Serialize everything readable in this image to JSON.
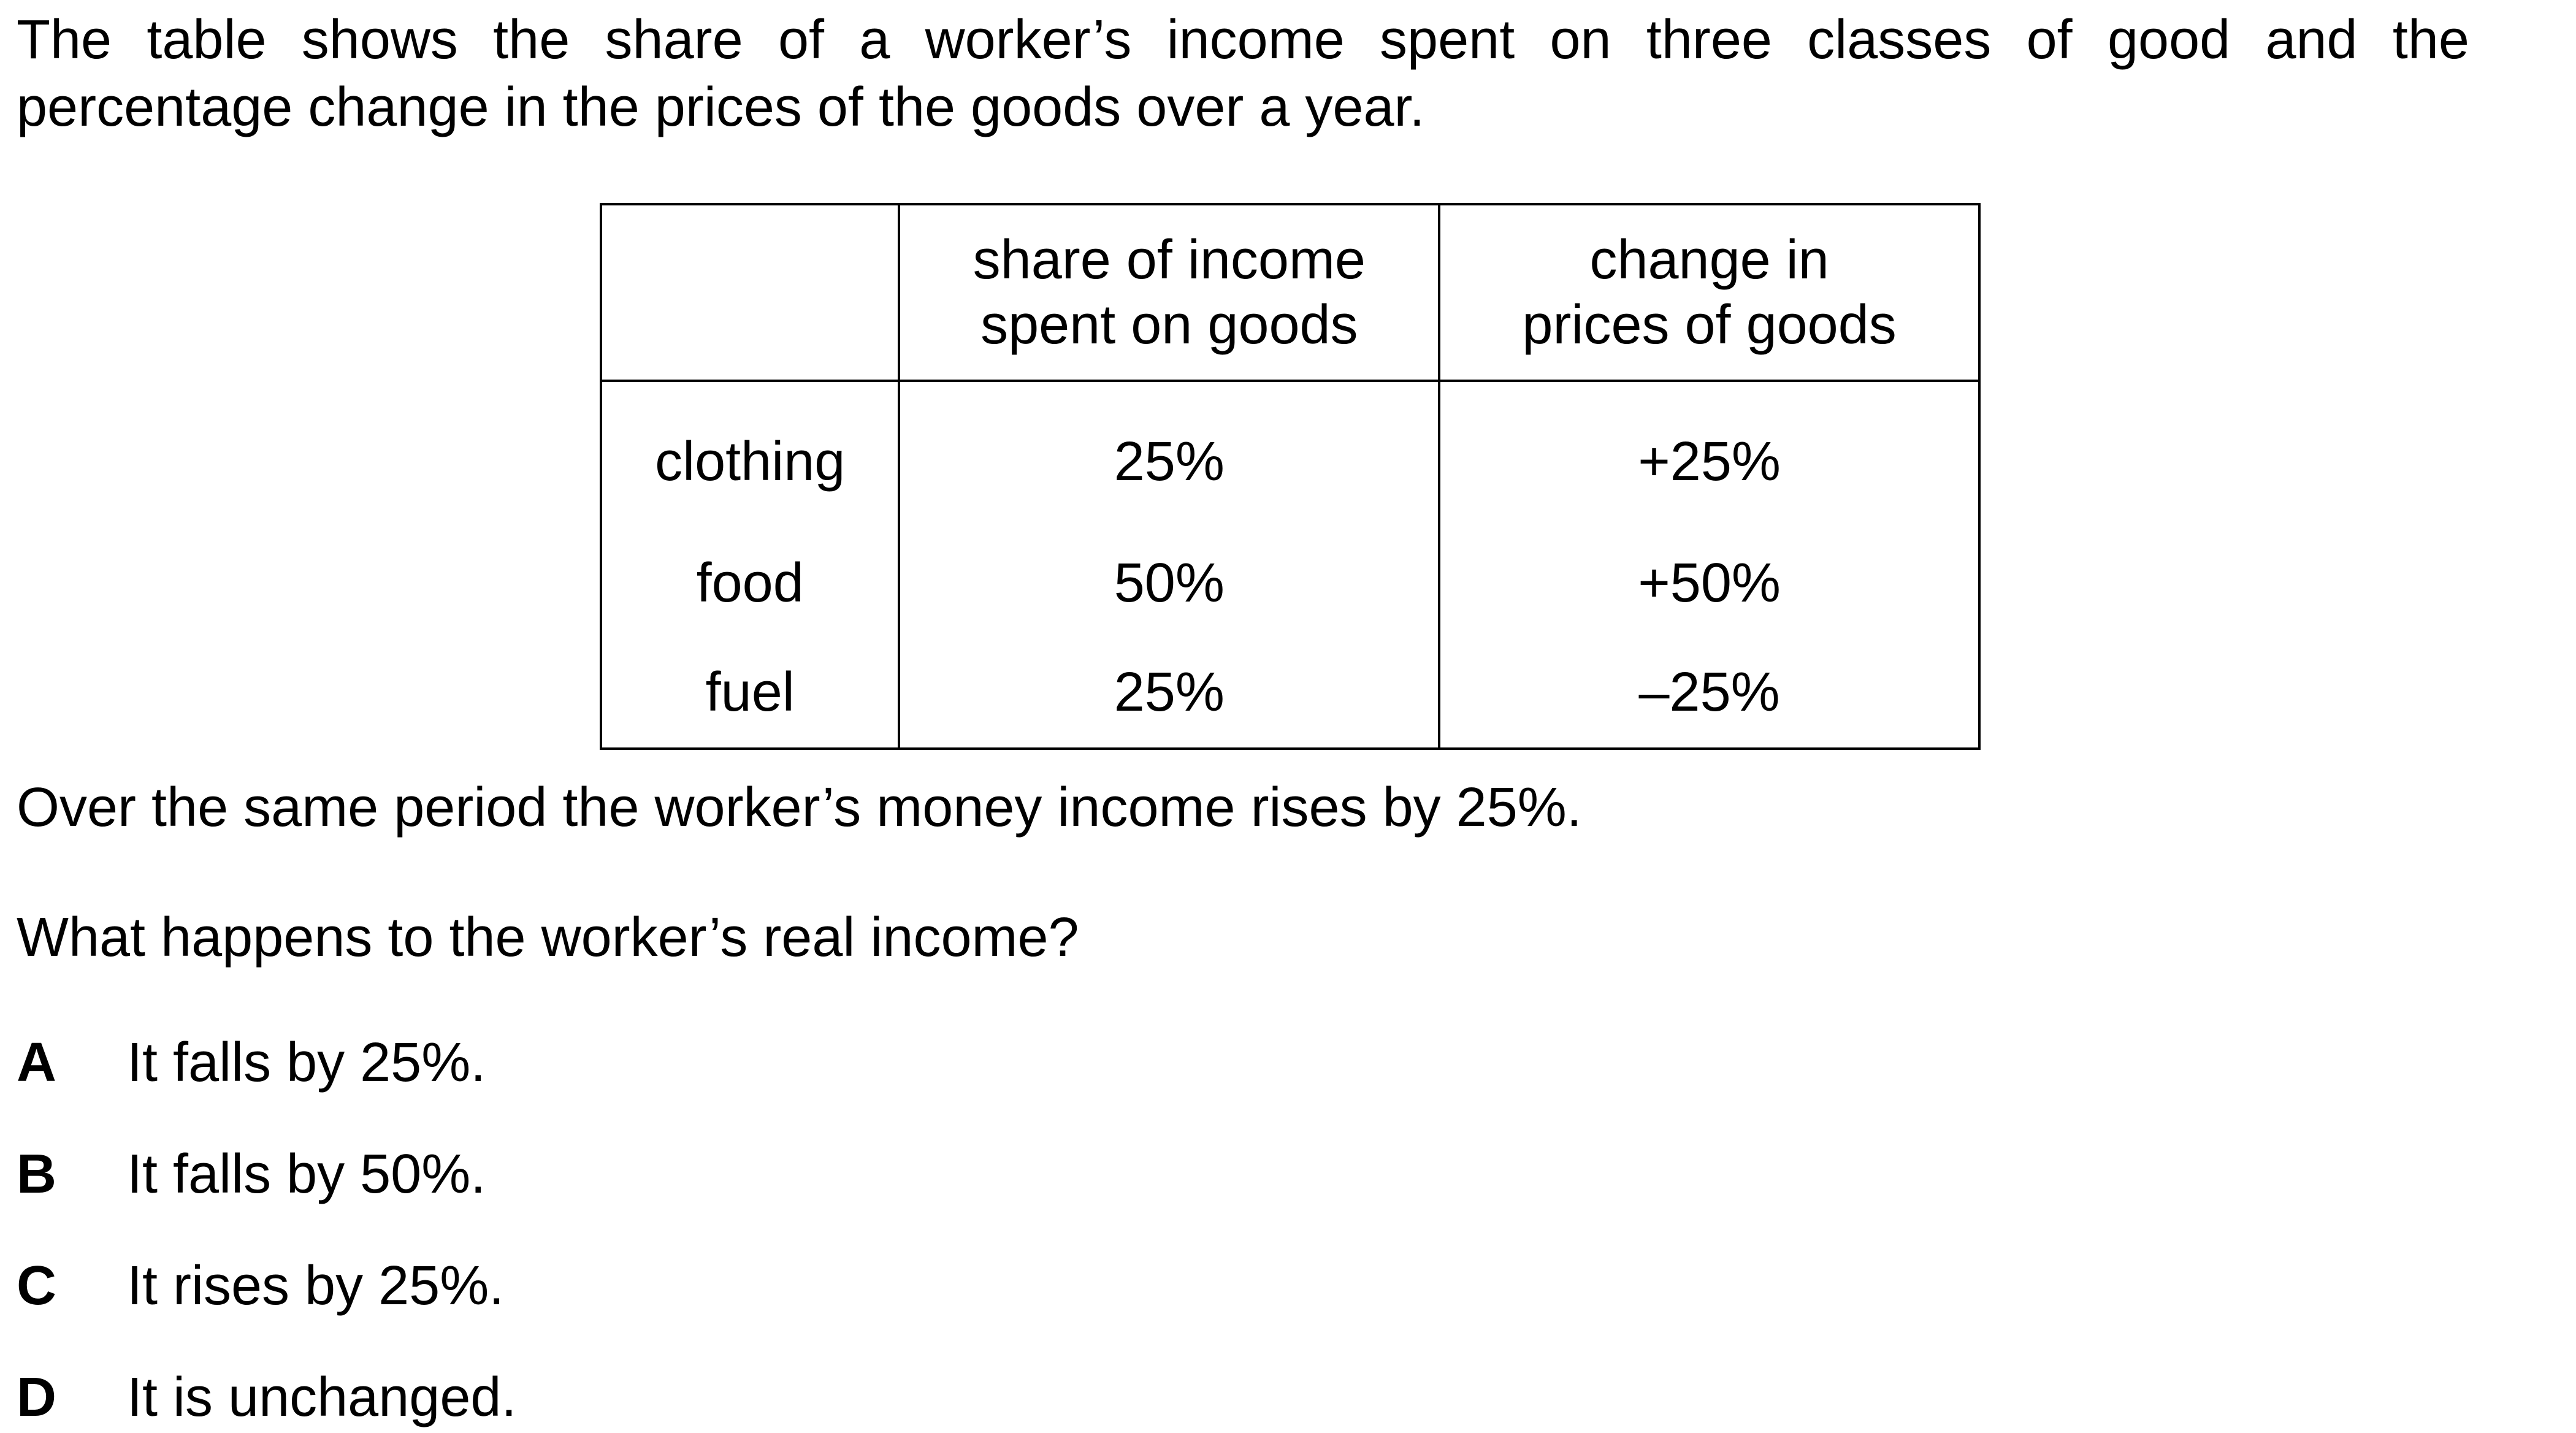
{
  "intro": {
    "line1": "The table shows the share of a worker’s income spent on three classes of good and the",
    "line2": "percentage change in the prices of the goods over a year."
  },
  "table": {
    "headers": {
      "label": "",
      "share": [
        "share of income",
        "spent on goods"
      ],
      "change": [
        "change in",
        "prices of goods"
      ]
    },
    "rows": [
      {
        "good": "clothing",
        "share": "25%",
        "change": "+25%"
      },
      {
        "good": "food",
        "share": "50%",
        "change": "+50%"
      },
      {
        "good": "fuel",
        "share": "25%",
        "change": "–25%"
      }
    ]
  },
  "statement": "Over the same period the worker’s money income rises by 25%.",
  "question": "What happens to the worker’s real income?",
  "options": [
    {
      "letter": "A",
      "text": "It falls by 25%."
    },
    {
      "letter": "B",
      "text": "It falls by 50%."
    },
    {
      "letter": "C",
      "text": "It rises by 25%."
    },
    {
      "letter": "D",
      "text": "It is unchanged."
    }
  ]
}
